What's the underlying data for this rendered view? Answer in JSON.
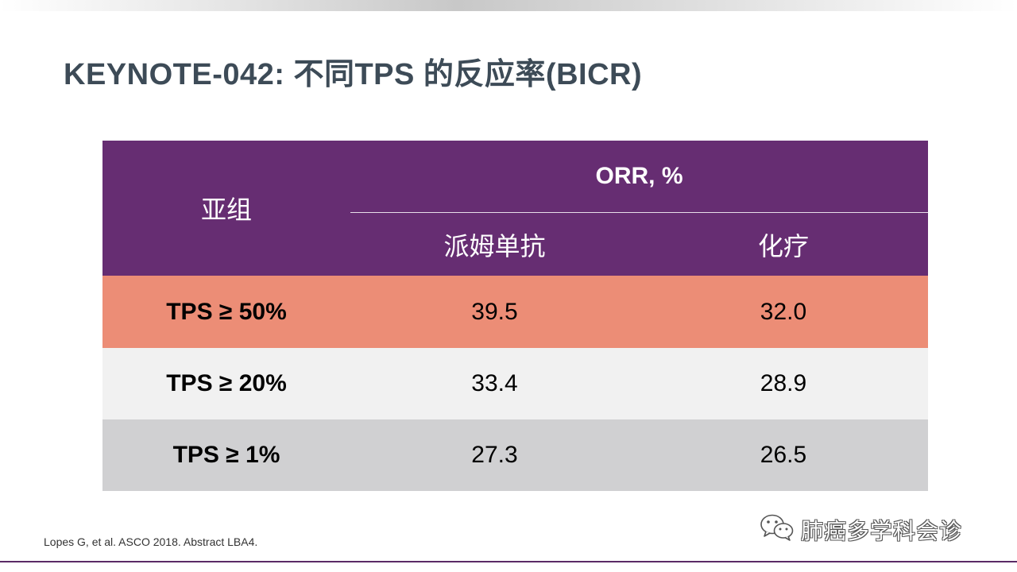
{
  "slide": {
    "title": "KEYNOTE-042: 不同TPS 的反应率(BICR)",
    "reference": "Lopes G, et al. ASCO 2018. Abstract LBA4."
  },
  "table": {
    "header": {
      "subgroup": "亚组",
      "orr": "ORR, %",
      "col1": "派姆单抗",
      "col2": "化疗"
    },
    "rows": [
      {
        "label": "TPS ≥ 50%",
        "v1": "39.5",
        "v2": "32.0"
      },
      {
        "label": "TPS ≥ 20%",
        "v1": "33.4",
        "v2": "28.9"
      },
      {
        "label": "TPS ≥ 1%",
        "v1": "27.3",
        "v2": "26.5"
      }
    ],
    "colors": {
      "header": "#662d72",
      "row_highlight": "#ec8d76",
      "row_light": "#f1f1f1",
      "row_gray": "#d0d0d2"
    }
  },
  "watermark": {
    "icon": "wechat-icon",
    "text": "肺癌多学科会诊"
  },
  "colors": {
    "title": "#3d4b57",
    "accent_line": "#5a2a66"
  }
}
